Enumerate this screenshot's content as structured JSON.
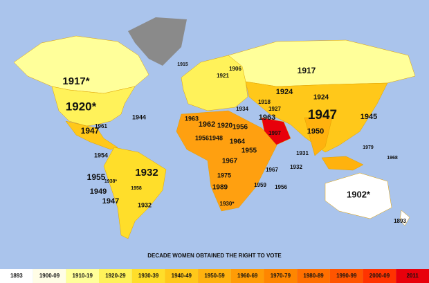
{
  "title": "DECADE WOMEN OBTAINED THE RIGHT TO VOTE",
  "legend": [
    {
      "label": "1893",
      "color": "#ffffff"
    },
    {
      "label": "1900-09",
      "color": "#fffde6"
    },
    {
      "label": "1910-19",
      "color": "#ffff9a"
    },
    {
      "label": "1920-29",
      "color": "#fff25a"
    },
    {
      "label": "1930-39",
      "color": "#ffde2a"
    },
    {
      "label": "1940-49",
      "color": "#ffc81a"
    },
    {
      "label": "1950-59",
      "color": "#ffb20e"
    },
    {
      "label": "1960-69",
      "color": "#ff9c06"
    },
    {
      "label": "1970-79",
      "color": "#ff8600"
    },
    {
      "label": "1980-89",
      "color": "#ff6f00"
    },
    {
      "label": "1990-99",
      "color": "#ff5500"
    },
    {
      "label": "2000-09",
      "color": "#ff3300"
    },
    {
      "label": "2011",
      "color": "#e8000b"
    }
  ],
  "labels": [
    "1917*",
    "1920*",
    "1947",
    "1932",
    "1955",
    "1949",
    "1947",
    "1932",
    "1917",
    "1924",
    "1924",
    "1947",
    "1945",
    "1950",
    "1902*",
    "1893",
    "1944",
    "1961",
    "1962",
    "1920",
    "1956",
    "1963",
    "1963",
    "1948",
    "1956",
    "1964",
    "1967",
    "1975",
    "1989",
    "1930*",
    "1955",
    "1959",
    "1956",
    "1967",
    "1932",
    "1931",
    "1979",
    "1968",
    "1915",
    "1906",
    "1934",
    "1997",
    "1918",
    "1927",
    "1938*",
    "1958",
    "1921",
    "1954"
  ]
}
